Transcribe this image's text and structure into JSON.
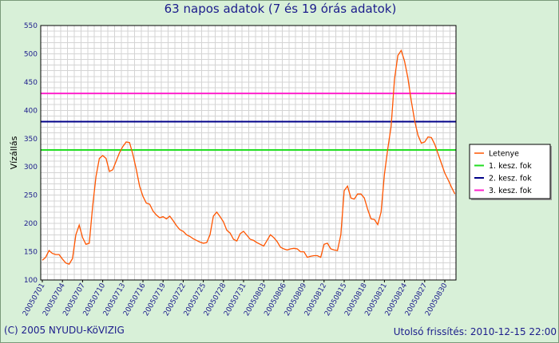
{
  "chart_data": {
    "type": "line",
    "title": "63 napos adatok (7 és 19 órás adatok)",
    "ylabel": "Vízállás",
    "xlabel": "",
    "ylim": [
      100,
      550
    ],
    "yticks": [
      100,
      150,
      200,
      250,
      300,
      350,
      400,
      450,
      500,
      550
    ],
    "grid": true,
    "legend_position": "right",
    "xtick_labels": [
      "20050701",
      "20050704",
      "20050707",
      "20050710",
      "20050713",
      "20050716",
      "20050719",
      "20050722",
      "20050725",
      "20050728",
      "20050731",
      "20050803",
      "20050806",
      "20050809",
      "20050812",
      "20050815",
      "20050818",
      "20050821",
      "20050824",
      "20050827",
      "20050830"
    ],
    "series": [
      {
        "name": "Letenye",
        "color": "#ff5500",
        "values": [
          135,
          140,
          152,
          147,
          145,
          145,
          137,
          130,
          128,
          138,
          180,
          197,
          175,
          163,
          165,
          230,
          283,
          315,
          320,
          315,
          292,
          295,
          310,
          325,
          336,
          344,
          343,
          322,
          296,
          266,
          248,
          236,
          234,
          222,
          215,
          210,
          212,
          208,
          213,
          205,
          196,
          189,
          186,
          180,
          177,
          173,
          170,
          167,
          165,
          166,
          180,
          213,
          220,
          212,
          203,
          188,
          183,
          172,
          169,
          182,
          186,
          179,
          172,
          170,
          166,
          163,
          160,
          170,
          180,
          175,
          168,
          158,
          155,
          153,
          155,
          156,
          155,
          150,
          150,
          140,
          142,
          143,
          143,
          140,
          163,
          165,
          155,
          153,
          152,
          180,
          258,
          266,
          245,
          243,
          252,
          252,
          245,
          225,
          208,
          207,
          198,
          220,
          287,
          332,
          372,
          455,
          497,
          506,
          487,
          457,
          417,
          382,
          356,
          342,
          344,
          353,
          352,
          340,
          323,
          306,
          289,
          277,
          264,
          252
        ]
      },
      {
        "name": "1. kesz. fok",
        "color": "#22dd22",
        "level": 330
      },
      {
        "name": "2. kesz. fok",
        "color": "#000088",
        "level": 380
      },
      {
        "name": "3. kesz. fok",
        "color": "#ff22cc",
        "level": 430
      }
    ]
  },
  "footer": {
    "copyright": "(C) 2005 NYUDU-KöVIZIG",
    "updated": "Utolsó frissítés: 2010-12-15 22:00"
  }
}
